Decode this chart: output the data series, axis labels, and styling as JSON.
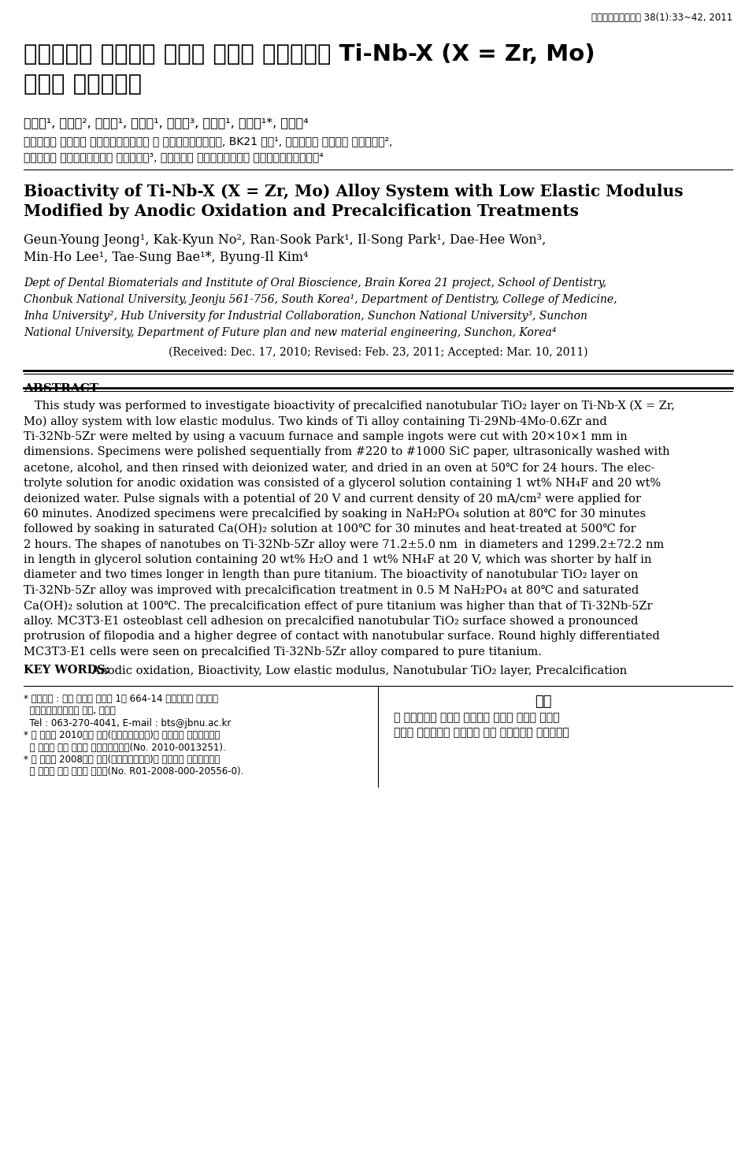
{
  "journal_header": "대한치과기재학회지 38(1):33~42, 2011",
  "korean_title_line1": "양극산화와 전석회화 처리로 개질한 저탄성계수 Ti-Nb-X (X = Zr, Mo)",
  "korean_title_line2": "합금의 생체활성도",
  "korean_authors": "정근영¹, 노각균², 박란숙¹, 박일송¹, 원대희³, 이민호¹, 배태성¹*, 김병일⁴",
  "korean_aff1": "전북대학교 치과대학 치과생체재료학교실 및 구강생체과학연구소, BK21 사업¹, 인하대학교 의과대학 치과학교실²,",
  "korean_aff2": "순천대학교 산학협력중심대학 육성사업단³, 순천대학교 신소재응용공학부 미래전략신소재공학과⁴",
  "english_title_line1": "Bioactivity of Ti-Nb-X (X = Zr, Mo) Alloy System with Low Elastic Modulus",
  "english_title_line2": "Modified by Anodic Oxidation and Precalcification Treatments",
  "english_authors_line1": "Geun-Young Jeong¹, Kak-Kyun No², Ran-Sook Park¹, Il-Song Park¹, Dae-Hee Won³,",
  "english_authors_line2": "Min-Ho Lee¹, Tae-Sung Bae¹*, Byung-Il Kim⁴",
  "en_aff_lines": [
    "Dept of Dental Biomaterials and Institute of Oral Bioscience, Brain Korea 21 project, School of Dentistry,",
    "Chonbuk National University, Jeonju 561-756, South Korea¹, Department of Dentistry, College of Medicine,",
    "Inha University², Hub University for Industrial Collaboration, Sunchon National University³, Sunchon",
    "National University, Department of Future plan and new material engineering, Sunchon, Korea⁴"
  ],
  "received_line": "(Received: Dec. 17, 2010; Revised: Feb. 23, 2011; Accepted: Mar. 10, 2011)",
  "abstract_heading": "ABSTRACT",
  "abstract_lines": [
    "   This study was performed to investigate bioactivity of precalcified nanotubular TiO₂ layer on Ti-Nb-X (X = Zr,",
    "Mo) alloy system with low elastic modulus. Two kinds of Ti alloy containing Ti-29Nb-4Mo-0.6Zr and",
    "Ti-32Nb-5Zr were melted by using a vacuum furnace and sample ingots were cut with 20×10×1 mm in",
    "dimensions. Specimens were polished sequentially from #220 to #1000 SiC paper, ultrasonically washed with",
    "acetone, alcohol, and then rinsed with deionized water, and dried in an oven at 50℃ for 24 hours. The elec-",
    "trolyte solution for anodic oxidation was consisted of a glycerol solution containing 1 wt% NH₄F and 20 wt%",
    "deionized water. Pulse signals with a potential of 20 V and current density of 20 mA/cm² were applied for",
    "60 minutes. Anodized specimens were precalcified by soaking in NaH₂PO₄ solution at 80℃ for 30 minutes",
    "followed by soaking in saturated Ca(OH)₂ solution at 100℃ for 30 minutes and heat-treated at 500℃ for",
    "2 hours. The shapes of nanotubes on Ti-32Nb-5Zr alloy were 71.2±5.0 nm  in diameters and 1299.2±72.2 nm",
    "in length in glycerol solution containing 20 wt% H₂O and 1 wt% NH₄F at 20 V, which was shorter by half in",
    "diameter and two times longer in length than pure titanium. The bioactivity of nanotubular TiO₂ layer on",
    "Ti-32Nb-5Zr alloy was improved with precalcification treatment in 0.5 M NaH₂PO₄ at 80℃ and saturated",
    "Ca(OH)₂ solution at 100℃. The precalcification effect of pure titanium was higher than that of Ti-32Nb-5Zr",
    "alloy. MC3T3-E1 osteoblast cell adhesion on precalcified nanotubular TiO₂ surface showed a pronounced",
    "protrusion of filopodia and a higher degree of contact with nanotubular surface. Round highly differentiated",
    "MC3T3-E1 cells were seen on precalcified Ti-32Nb-5Zr alloy compared to pure titanium."
  ],
  "keywords_line": "KEY WORDS: Anodic oxidation, Bioactivity, Low elastic modulus, Nanotubular TiO₂ layer, Precalcification",
  "foot_left": [
    "* 교신저자 : 전북 전주시 덕진동 1가 664-14 전북대학교 치과대학",
    "  치과생체재료학교실 교수, 배태성",
    "  Tel : 063-270-4041, E-mail : bts@jbnu.ac.kr",
    "* 이 논문은 2010년도 정부(교육과학기술부)의 재원으로 한국연구재단",
    "  의 지원을 받아 수행된 기초연구사업임(No. 2010-0013251).",
    "* 이 논문은 2008년도 정부(교육과학기술부)의 재원으로 한국과학재단",
    "  의 지원을 받아 수행된 연구임(No. R01-2008-000-20556-0)."
  ],
  "foot_right_heading": "서론",
  "foot_right_lines": [
    "순 타이타늄과 일부의 타이타늄 합금은 우수한 생체적",
    "합성과 골전도성의 특성으로 인해 정형외과와 치과소재로"
  ],
  "background_color": "#ffffff"
}
